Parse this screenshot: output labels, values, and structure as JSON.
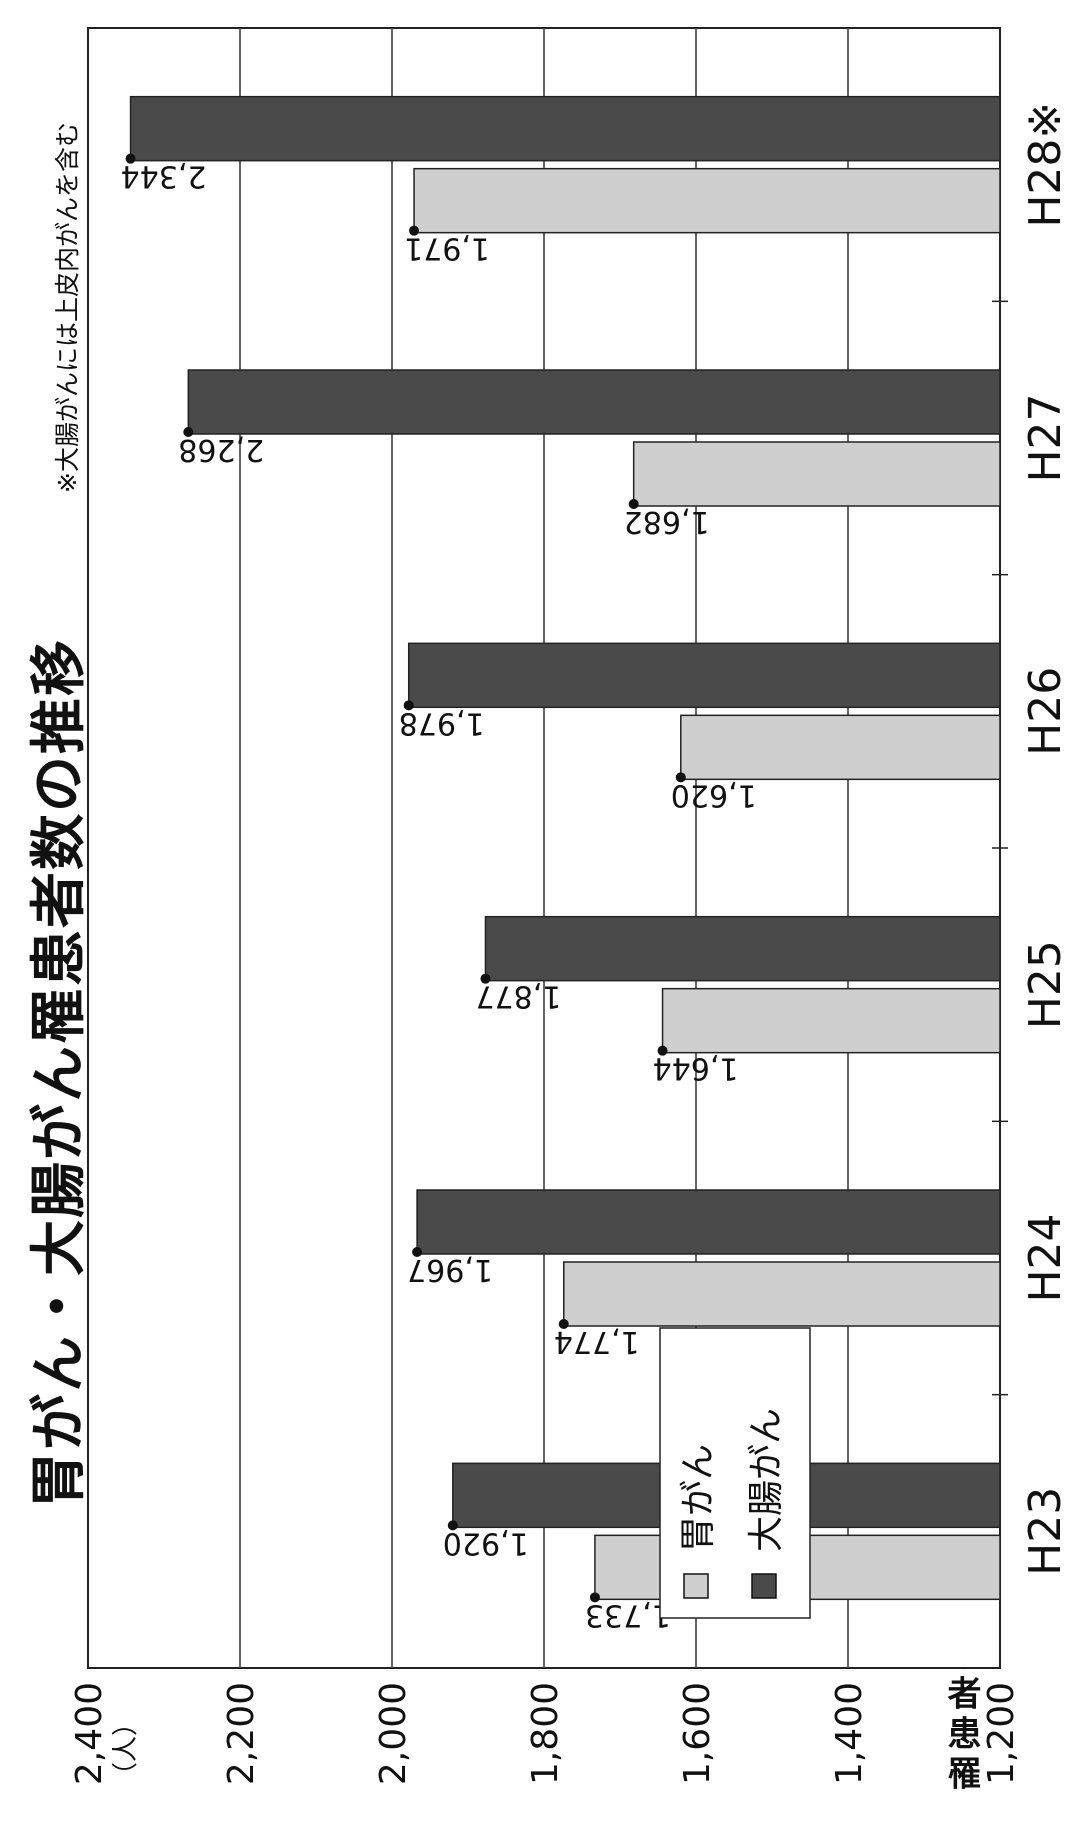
{
  "title": "胃がん・大腸がん罹患者数の推移",
  "note": "※大腸がんには上皮内がんを含む",
  "unit": "（人）",
  "chart_data": {
    "type": "bar",
    "title": "胃がん・大腸がん罹患者数の推移",
    "ylabel": "罹患者数",
    "yunit": "（人）",
    "ylim": [
      1200,
      2400
    ],
    "yticks": [
      "1,200",
      "1,400",
      "1,600",
      "1,800",
      "2,000",
      "2,200",
      "2,400"
    ],
    "categories": [
      "H23",
      "H24",
      "H25",
      "H26",
      "H27",
      "H28※"
    ],
    "series": [
      {
        "name": "胃がん",
        "color": "#cfcfcf",
        "values": [
          1733,
          1774,
          1644,
          1620,
          1682,
          1971
        ],
        "labels": [
          "1,733",
          "1,774",
          "1,644",
          "1,620",
          "1,682",
          "1,971"
        ]
      },
      {
        "name": "大腸がん",
        "color": "#4a4a4a",
        "values": [
          1920,
          1967,
          1877,
          1978,
          2268,
          2344
        ],
        "labels": [
          "1,920",
          "1,967",
          "1,877",
          "1,978",
          "2,268",
          "2,344"
        ]
      }
    ],
    "legend_position": "top-left",
    "grid": true
  }
}
